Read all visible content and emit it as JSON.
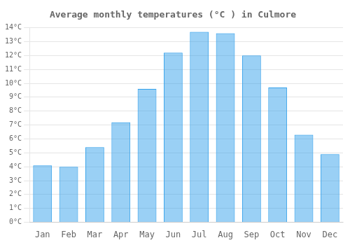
{
  "chart_data": {
    "type": "bar",
    "title": "Average monthly temperatures (°C ) in Culmore",
    "categories": [
      "Jan",
      "Feb",
      "Mar",
      "Apr",
      "May",
      "Jun",
      "Jul",
      "Aug",
      "Sep",
      "Oct",
      "Nov",
      "Dec"
    ],
    "values": [
      4.1,
      4.0,
      5.4,
      7.2,
      9.6,
      12.2,
      13.7,
      13.6,
      12.0,
      9.7,
      6.3,
      4.9
    ],
    "ylim": [
      0,
      14
    ],
    "yticks": [
      {
        "value": 0,
        "label": "0°C"
      },
      {
        "value": 1,
        "label": "1°C"
      },
      {
        "value": 2,
        "label": "2°C"
      },
      {
        "value": 3,
        "label": "3°C"
      },
      {
        "value": 4,
        "label": "4°C"
      },
      {
        "value": 5,
        "label": "5°C"
      },
      {
        "value": 6,
        "label": "6°C"
      },
      {
        "value": 7,
        "label": "7°C"
      },
      {
        "value": 8,
        "label": "8°C"
      },
      {
        "value": 9,
        "label": "9°C"
      },
      {
        "value": 10,
        "label": "10°C"
      },
      {
        "value": 11,
        "label": "11°C"
      },
      {
        "value": 12,
        "label": "12°C"
      },
      {
        "value": 13,
        "label": "13°C"
      },
      {
        "value": 14,
        "label": "14°C"
      }
    ],
    "grid": true
  }
}
